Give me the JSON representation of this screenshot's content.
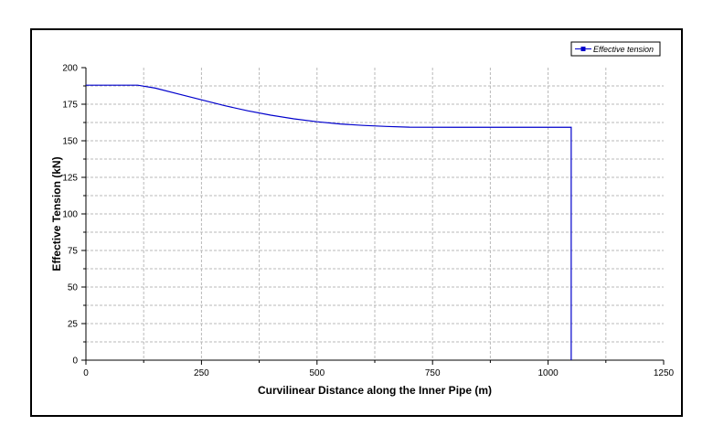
{
  "chart_data": {
    "type": "line",
    "xlabel": "Curvilinear Distance along the Inner Pipe (m)",
    "ylabel": "Effective Tension (kN)",
    "xlim": [
      0,
      1250
    ],
    "ylim": [
      0,
      200
    ],
    "x_ticks": [
      0,
      250,
      500,
      750,
      1000,
      1250
    ],
    "y_ticks": [
      0,
      25,
      50,
      75,
      100,
      125,
      150,
      175,
      200
    ],
    "grid": true,
    "legend_position": "top-right",
    "series": [
      {
        "name": "Effective tension",
        "color": "#0000cc",
        "x": [
          0,
          50,
          100,
          112,
          150,
          200,
          250,
          300,
          350,
          400,
          450,
          500,
          550,
          600,
          650,
          700,
          800,
          900,
          1000,
          1050,
          1050
        ],
        "y": [
          188,
          188,
          188,
          188,
          186,
          182,
          178,
          174,
          170.5,
          167.5,
          165,
          163,
          161.5,
          160.5,
          159.8,
          159.3,
          159.2,
          159.2,
          159.2,
          159.2,
          0
        ]
      }
    ]
  }
}
